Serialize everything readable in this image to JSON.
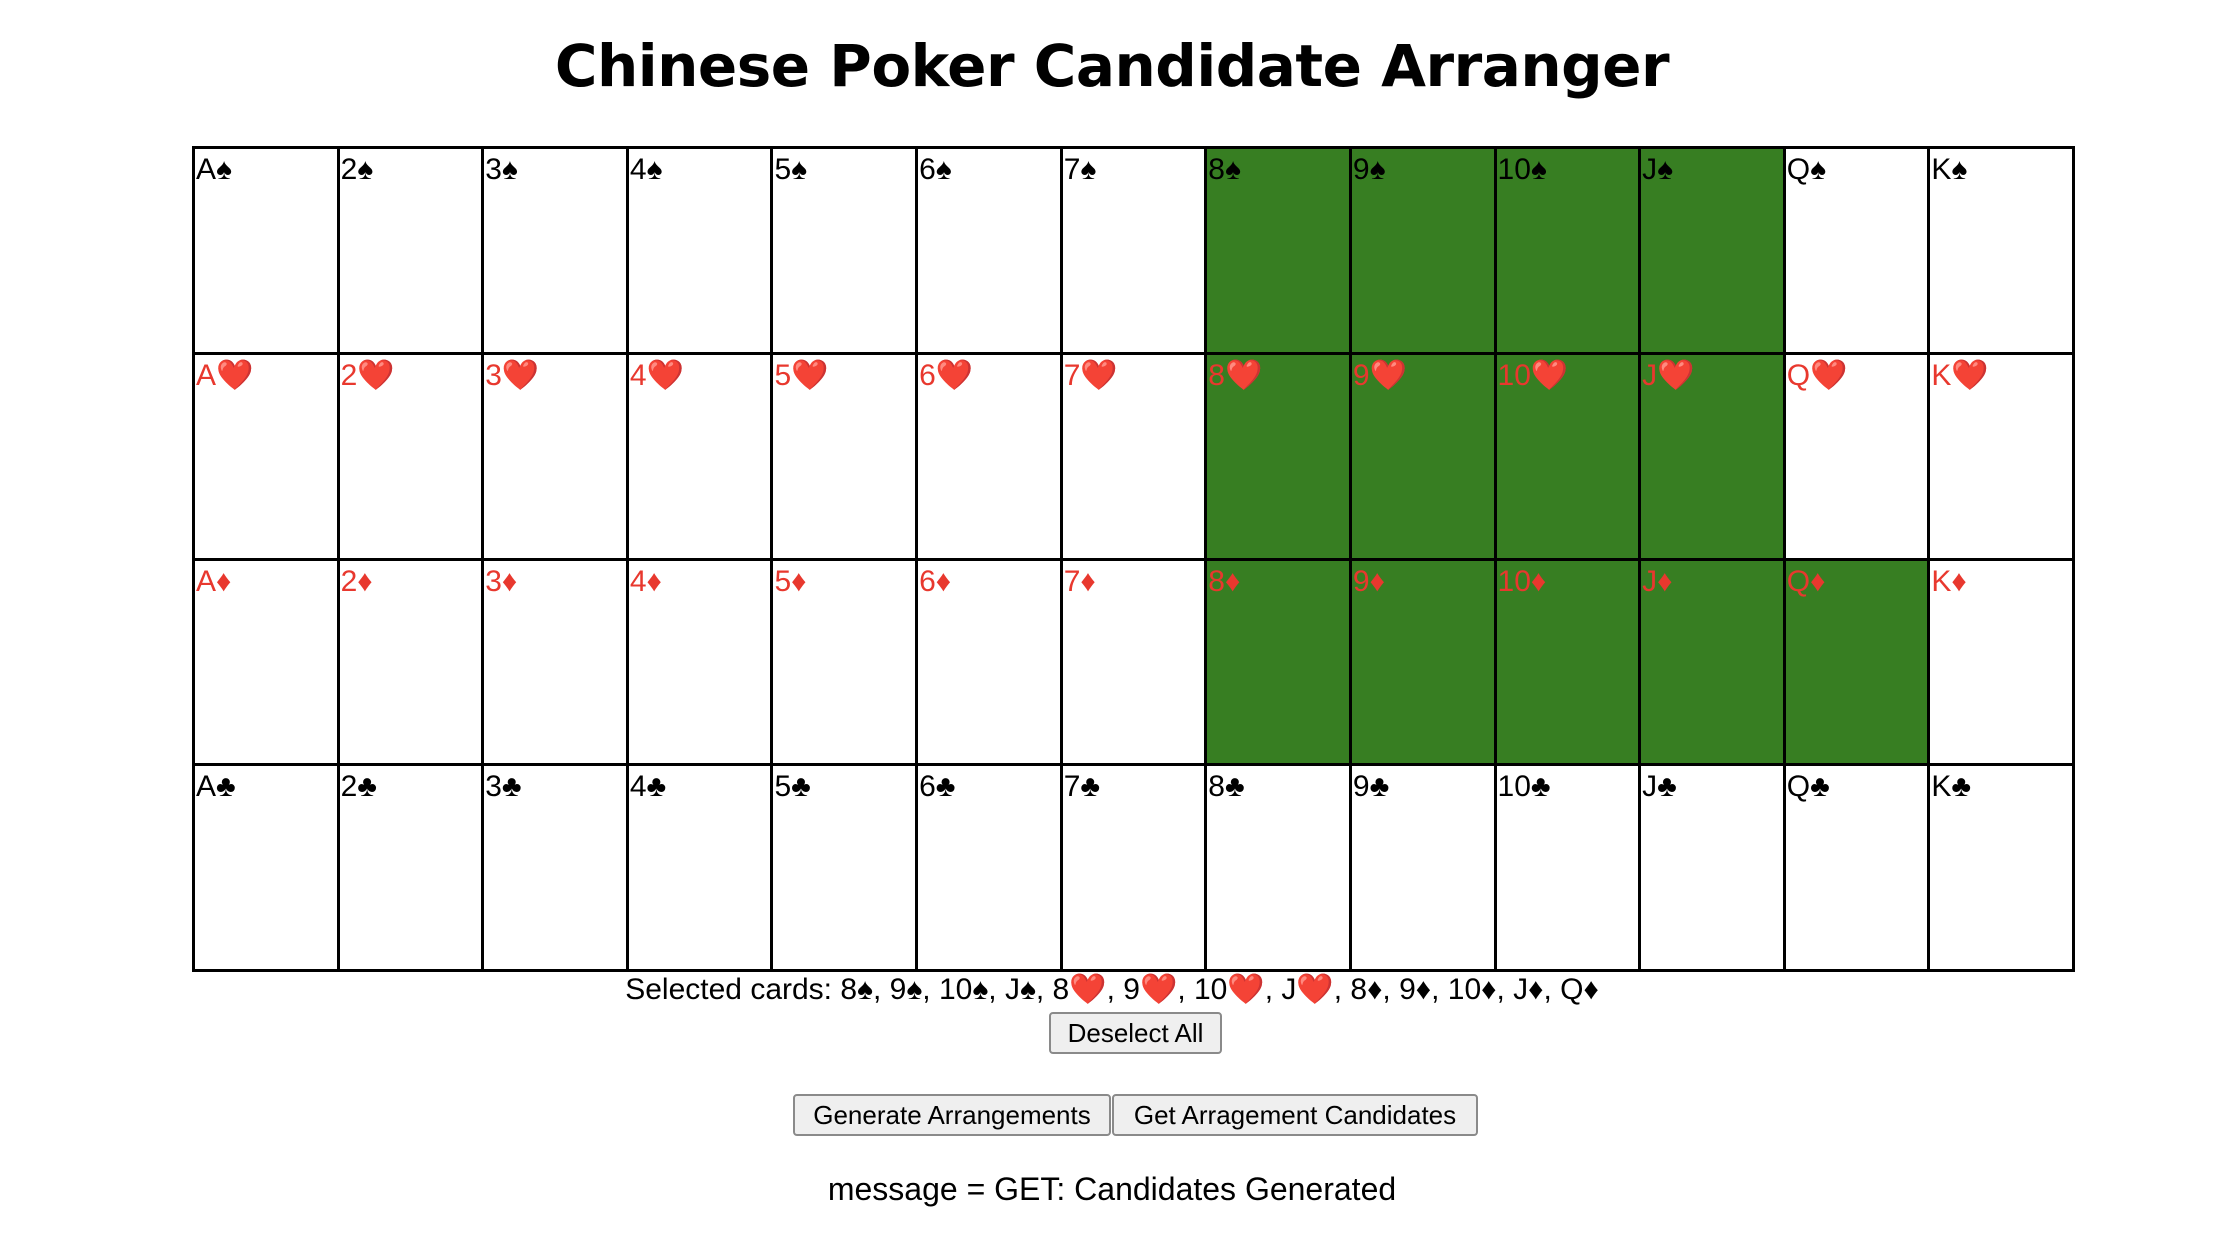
{
  "page_title": "Chinese Poker Candidate Arranger",
  "ranks": [
    "A",
    "2",
    "3",
    "4",
    "5",
    "6",
    "7",
    "8",
    "9",
    "10",
    "J",
    "Q",
    "K"
  ],
  "suits": [
    {
      "name": "spades",
      "symbol": "♠",
      "color": "#000000"
    },
    {
      "name": "hearts",
      "symbol": "❤️",
      "color": "#e8382e"
    },
    {
      "name": "diamonds",
      "symbol": "♦",
      "color": "#e8382e"
    },
    {
      "name": "clubs",
      "symbol": "♣",
      "color": "#000000"
    }
  ],
  "selected_color": "#377e22",
  "selected_cards": [
    "8♠",
    "9♠",
    "10♠",
    "J♠",
    "8❤️",
    "9❤️",
    "10❤️",
    "J❤️",
    "8♦",
    "9♦",
    "10♦",
    "J♦",
    "Q♦"
  ],
  "selected_label": "Selected cards: ",
  "buttons": {
    "deselect_all": "Deselect All",
    "generate": "Generate Arrangements",
    "get_candidates": "Get Arragement Candidates"
  },
  "message": "message = GET: Candidates Generated"
}
